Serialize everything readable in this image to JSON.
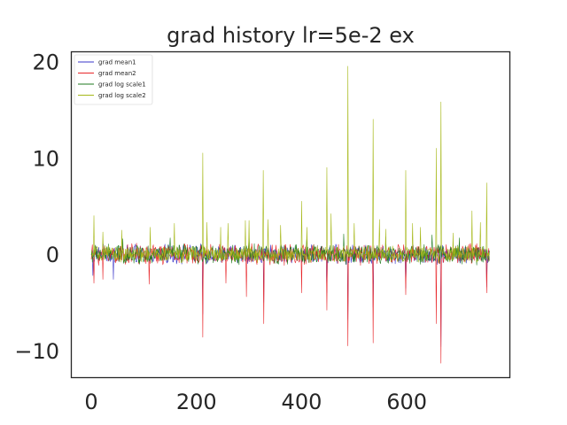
{
  "chart_data": {
    "type": "line",
    "title": "grad history lr=5e-2 ex",
    "xlabel": "",
    "ylabel": "",
    "xlim": [
      -38,
      796
    ],
    "ylim": [
      -12.8,
      21.0
    ],
    "x_ticks": [
      0,
      200,
      400,
      600
    ],
    "y_ticks": [
      -10,
      0,
      10,
      20
    ],
    "x_tick_labels": [
      "0",
      "200",
      "400",
      "600"
    ],
    "y_tick_labels": [
      "−10",
      "0",
      "10",
      "20"
    ],
    "grid": false,
    "legend_position": "top-left",
    "n_points": 758,
    "series": [
      {
        "name": "grad mean1",
        "color": "#3a36c9",
        "amplitude": 0.8,
        "spikes": [
          [
            3,
            -2.2
          ],
          [
            42,
            -2.6
          ],
          [
            212,
            -6.2
          ],
          [
            328,
            -5.0
          ],
          [
            448,
            -4.0
          ],
          [
            488,
            -6.8
          ],
          [
            536,
            -5.5
          ],
          [
            598,
            -3.5
          ],
          [
            665,
            -9.6
          ],
          [
            752,
            -3.4
          ]
        ]
      },
      {
        "name": "grad mean2",
        "color": "#e8262a",
        "amplitude": 0.9,
        "spikes": [
          [
            5,
            -3.0
          ],
          [
            22,
            -2.6
          ],
          [
            110,
            -3.1
          ],
          [
            212,
            -8.6
          ],
          [
            256,
            -3.0
          ],
          [
            295,
            -4.4
          ],
          [
            328,
            -7.2
          ],
          [
            400,
            -4.0
          ],
          [
            448,
            -5.8
          ],
          [
            488,
            -9.5
          ],
          [
            536,
            -9.2
          ],
          [
            598,
            -4.2
          ],
          [
            656,
            -7.2
          ],
          [
            665,
            -11.3
          ],
          [
            752,
            -4.0
          ]
        ]
      },
      {
        "name": "grad log scale1",
        "color": "#1f7a1f",
        "amplitude": 0.85,
        "spikes": [
          [
            60,
            1.6
          ],
          [
            150,
            1.7
          ],
          [
            300,
            1.8
          ],
          [
            410,
            1.7
          ],
          [
            480,
            2.1
          ],
          [
            560,
            1.8
          ],
          [
            648,
            2.0
          ],
          [
            700,
            1.7
          ]
        ]
      },
      {
        "name": "grad log scale2",
        "color": "#a6b818",
        "amplitude": 0.7,
        "spikes": [
          [
            5,
            4.0
          ],
          [
            22,
            2.3
          ],
          [
            58,
            2.5
          ],
          [
            112,
            2.8
          ],
          [
            158,
            3.2
          ],
          [
            212,
            10.5
          ],
          [
            220,
            3.3
          ],
          [
            246,
            2.8
          ],
          [
            260,
            3.2
          ],
          [
            293,
            3.5
          ],
          [
            300,
            3.5
          ],
          [
            327,
            8.7
          ],
          [
            336,
            3.6
          ],
          [
            360,
            3.0
          ],
          [
            400,
            5.5
          ],
          [
            410,
            2.8
          ],
          [
            448,
            9.0
          ],
          [
            456,
            4.2
          ],
          [
            488,
            19.5
          ],
          [
            500,
            3.2
          ],
          [
            536,
            14.0
          ],
          [
            548,
            3.6
          ],
          [
            560,
            2.6
          ],
          [
            598,
            8.7
          ],
          [
            611,
            3.2
          ],
          [
            626,
            2.8
          ],
          [
            656,
            11.0
          ],
          [
            665,
            15.8
          ],
          [
            688,
            2.2
          ],
          [
            724,
            4.5
          ],
          [
            740,
            3.3
          ],
          [
            752,
            7.4
          ]
        ]
      }
    ]
  }
}
